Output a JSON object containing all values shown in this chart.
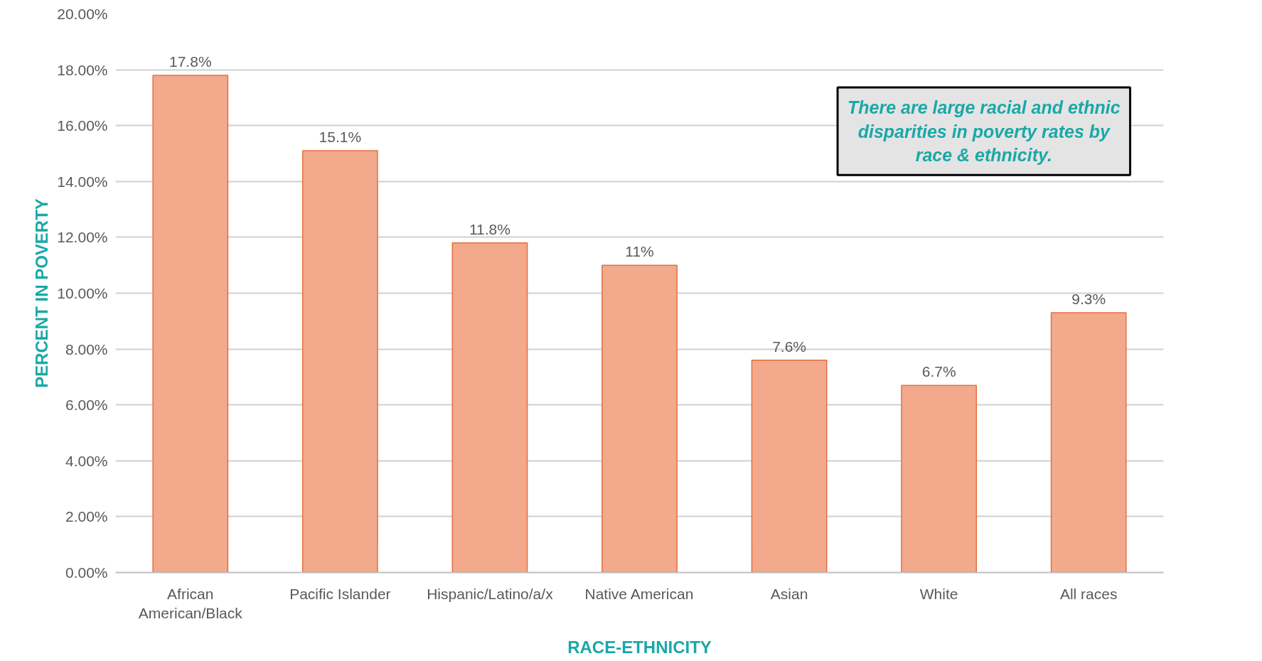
{
  "chart_data": {
    "type": "bar",
    "xlabel": "RACE-ETHNICITY",
    "ylabel": "PERCENT IN POVERTY",
    "categories": [
      "African American/Black",
      "Pacific Islander",
      "Hispanic/Latino/a/x",
      "Native American",
      "Asian",
      "White",
      "All races"
    ],
    "values": [
      17.8,
      15.1,
      11.8,
      11,
      7.6,
      6.7,
      9.3
    ],
    "value_labels": [
      "17.8%",
      "15.1%",
      "11.8%",
      "11%",
      "7.6%",
      "6.7%",
      "9.3%"
    ],
    "color": "#f3a98c",
    "ylim": [
      0,
      20
    ],
    "yticks": [
      {
        "value": 0,
        "label": "0.00%"
      },
      {
        "value": 2,
        "label": "2.00%"
      },
      {
        "value": 4,
        "label": "4.00%"
      },
      {
        "value": 6,
        "label": "6.00%"
      },
      {
        "value": 8,
        "label": "8.00%"
      },
      {
        "value": 10,
        "label": "10.00%"
      },
      {
        "value": 12,
        "label": "12.00%"
      },
      {
        "value": 14,
        "label": "14.00%"
      },
      {
        "value": 16,
        "label": "16.00%"
      },
      {
        "value": 18,
        "label": "18.00%"
      },
      {
        "value": 20,
        "label": "20.00%"
      }
    ],
    "grid": "y",
    "annotations": [
      "There are large racial and ethnic disparities in poverty rates by race & ethnicity."
    ]
  }
}
